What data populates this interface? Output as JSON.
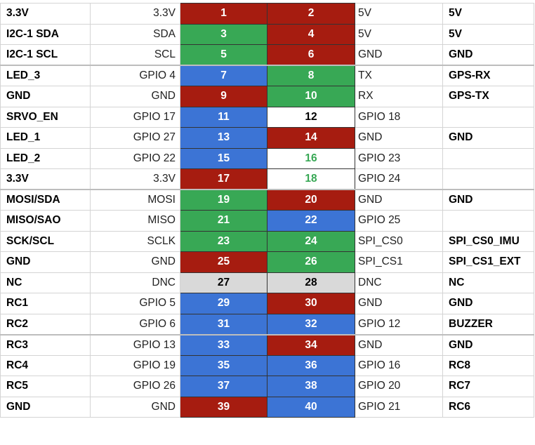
{
  "colors": {
    "power_red": "#a61c10",
    "i2c_green": "#38a855",
    "gpio_blue": "#3c74d5",
    "unused_gray": "#d9d9d9"
  },
  "rows": [
    {
      "left_func": "3.3V",
      "left_gpio": "3.3V",
      "left_pin": "1",
      "left_color": "red",
      "right_pin": "2",
      "right_color": "red",
      "right_gpio": "5V",
      "right_func": "5V"
    },
    {
      "left_func": "I2C-1 SDA",
      "left_gpio": "SDA",
      "left_pin": "3",
      "left_color": "green",
      "right_pin": "4",
      "right_color": "red",
      "right_gpio": "5V",
      "right_func": "5V"
    },
    {
      "left_func": "I2C-1 SCL",
      "left_gpio": "SCL",
      "left_pin": "5",
      "left_color": "green",
      "right_pin": "6",
      "right_color": "red",
      "right_gpio": "GND",
      "right_func": "GND"
    },
    {
      "left_func": "LED_3",
      "left_gpio": "GPIO 4",
      "left_pin": "7",
      "left_color": "blue",
      "right_pin": "8",
      "right_color": "green",
      "right_gpio": "TX",
      "right_func": "GPS-RX"
    },
    {
      "left_func": "GND",
      "left_gpio": "GND",
      "left_pin": "9",
      "left_color": "red",
      "right_pin": "10",
      "right_color": "green",
      "right_gpio": "RX",
      "right_func": "GPS-TX"
    },
    {
      "left_func": "SRVO_EN",
      "left_gpio": "GPIO 17",
      "left_pin": "11",
      "left_color": "blue",
      "right_pin": "12",
      "right_color": "white",
      "right_gpio": "GPIO 18",
      "right_func": ""
    },
    {
      "left_func": "LED_1",
      "left_gpio": "GPIO 27",
      "left_pin": "13",
      "left_color": "blue",
      "right_pin": "14",
      "right_color": "red",
      "right_gpio": "GND",
      "right_func": "GND"
    },
    {
      "left_func": "LED_2",
      "left_gpio": "GPIO 22",
      "left_pin": "15",
      "left_color": "blue",
      "right_pin": "16",
      "right_color": "white-green",
      "right_gpio": "GPIO 23",
      "right_func": ""
    },
    {
      "left_func": "3.3V",
      "left_gpio": "3.3V",
      "left_pin": "17",
      "left_color": "red",
      "right_pin": "18",
      "right_color": "white-green",
      "right_gpio": "GPIO 24",
      "right_func": ""
    },
    {
      "left_func": "MOSI/SDA",
      "left_gpio": "MOSI",
      "left_pin": "19",
      "left_color": "green",
      "right_pin": "20",
      "right_color": "red",
      "right_gpio": "GND",
      "right_func": "GND"
    },
    {
      "left_func": "MISO/SAO",
      "left_gpio": "MISO",
      "left_pin": "21",
      "left_color": "green",
      "right_pin": "22",
      "right_color": "blue",
      "right_gpio": "GPIO 25",
      "right_func": ""
    },
    {
      "left_func": "SCK/SCL",
      "left_gpio": "SCLK",
      "left_pin": "23",
      "left_color": "green",
      "right_pin": "24",
      "right_color": "green",
      "right_gpio": "SPI_CS0",
      "right_func": "SPI_CS0_IMU"
    },
    {
      "left_func": "GND",
      "left_gpio": "GND",
      "left_pin": "25",
      "left_color": "red",
      "right_pin": "26",
      "right_color": "green",
      "right_gpio": "SPI_CS1",
      "right_func": "SPI_CS1_EXT"
    },
    {
      "left_func": "NC",
      "left_gpio": "DNC",
      "left_pin": "27",
      "left_color": "gray",
      "right_pin": "28",
      "right_color": "gray",
      "right_gpio": "DNC",
      "right_func": "NC"
    },
    {
      "left_func": "RC1",
      "left_gpio": "GPIO 5",
      "left_pin": "29",
      "left_color": "blue",
      "right_pin": "30",
      "right_color": "red",
      "right_gpio": "GND",
      "right_func": "GND"
    },
    {
      "left_func": "RC2",
      "left_gpio": "GPIO 6",
      "left_pin": "31",
      "left_color": "blue",
      "right_pin": "32",
      "right_color": "blue",
      "right_gpio": "GPIO 12",
      "right_func": "BUZZER"
    },
    {
      "left_func": "RC3",
      "left_gpio": "GPIO 13",
      "left_pin": "33",
      "left_color": "blue",
      "right_pin": "34",
      "right_color": "red",
      "right_gpio": "GND",
      "right_func": "GND"
    },
    {
      "left_func": "RC4",
      "left_gpio": "GPIO 19",
      "left_pin": "35",
      "left_color": "blue",
      "right_pin": "36",
      "right_color": "blue",
      "right_gpio": "GPIO 16",
      "right_func": "RC8"
    },
    {
      "left_func": "RC5",
      "left_gpio": "GPIO 26",
      "left_pin": "37",
      "left_color": "blue",
      "right_pin": "38",
      "right_color": "blue",
      "right_gpio": "GPIO 20",
      "right_func": "RC7"
    },
    {
      "left_func": "GND",
      "left_gpio": "GND",
      "left_pin": "39",
      "left_color": "red",
      "right_pin": "40",
      "right_color": "blue",
      "right_gpio": "GPIO 21",
      "right_func": "RC6"
    }
  ]
}
